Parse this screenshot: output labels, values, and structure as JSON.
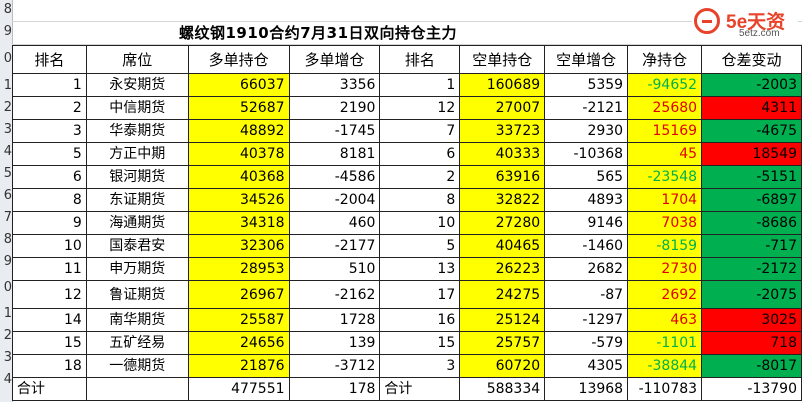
{
  "title": "螺纹钢1910合约7月31日双向持仓主力",
  "logo": {
    "brand": "5e天资",
    "url": "5etz.com",
    "icon": "5etz-logo-icon",
    "color": "#e8432a"
  },
  "row_headers": [
    "8",
    "9",
    "0",
    "1",
    "2",
    "3",
    "4",
    "5",
    "6",
    "7",
    "8",
    "9",
    "0",
    "1",
    "2",
    "3",
    "4"
  ],
  "headers": [
    "排名",
    "席位",
    "多单持仓",
    "多单增仓",
    "排名",
    "空单持仓",
    "空单增仓",
    "净持仓",
    "仓差变动"
  ],
  "rows": [
    [
      "1",
      "永安期货",
      "66037",
      "3356",
      "1",
      "160689",
      "5359",
      "-94652",
      "-2003"
    ],
    [
      "2",
      "中信期货",
      "52687",
      "2190",
      "12",
      "27007",
      "-2121",
      "25680",
      "4311"
    ],
    [
      "3",
      "华泰期货",
      "48892",
      "-1745",
      "7",
      "33723",
      "2930",
      "15169",
      "-4675"
    ],
    [
      "5",
      "方正中期",
      "40378",
      "8181",
      "6",
      "40333",
      "-10368",
      "45",
      "18549"
    ],
    [
      "6",
      "银河期货",
      "40368",
      "-4586",
      "2",
      "63916",
      "565",
      "-23548",
      "-5151"
    ],
    [
      "8",
      "东证期货",
      "34526",
      "-2004",
      "8",
      "32822",
      "4893",
      "1704",
      "-6897"
    ],
    [
      "9",
      "海通期货",
      "34318",
      "460",
      "10",
      "27280",
      "9146",
      "7038",
      "-8686"
    ],
    [
      "10",
      "国泰君安",
      "32306",
      "-2177",
      "5",
      "40465",
      "-1460",
      "-8159",
      "-717"
    ],
    [
      "11",
      "申万期货",
      "28953",
      "510",
      "13",
      "26223",
      "2682",
      "2730",
      "-2172"
    ],
    [
      "12",
      "鲁证期货",
      "26967",
      "-2162",
      "17",
      "24275",
      "-87",
      "2692",
      "-2075"
    ],
    [
      "14",
      "南华期货",
      "25587",
      "1728",
      "16",
      "25124",
      "-1297",
      "463",
      "3025"
    ],
    [
      "15",
      "五矿经易",
      "24656",
      "139",
      "15",
      "25757",
      "-579",
      "-1101",
      "718"
    ],
    [
      "18",
      "一德期货",
      "21876",
      "-3712",
      "3",
      "60720",
      "4305",
      "-38844",
      "-8017"
    ]
  ],
  "total": {
    "label1": "合计",
    "long_total": "477551",
    "long_change": "178",
    "label2": "合计",
    "short_total": "588334",
    "short_change": "13968",
    "net": "-110783",
    "diff": "-13790"
  },
  "colors": {
    "yellow": "#ffff00",
    "red": "#ff0000",
    "green": "#00b050",
    "pos_text": "#e00000",
    "neg_text": "#00b050"
  }
}
